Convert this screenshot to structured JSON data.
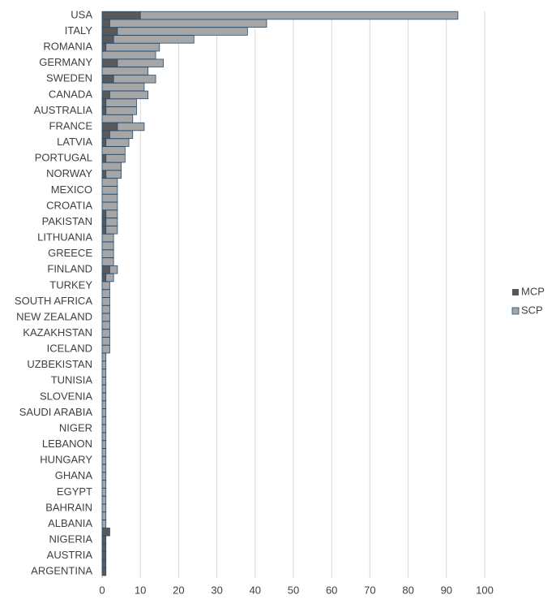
{
  "chart_data": {
    "type": "stacked-barh",
    "categories": [
      "USA",
      null,
      "ITALY",
      null,
      "ROMANIA",
      null,
      "GERMANY",
      null,
      "SWEDEN",
      null,
      "CANADA",
      null,
      "AUSTRALIA",
      null,
      "FRANCE",
      null,
      "LATVIA",
      null,
      "PORTUGAL",
      null,
      "NORWAY",
      null,
      "MEXICO",
      null,
      "CROATIA",
      null,
      "PAKISTAN",
      null,
      "LITHUANIA",
      null,
      "GREECE",
      null,
      "FINLAND",
      null,
      "TURKEY",
      null,
      "SOUTH AFRICA",
      null,
      "NEW ZEALAND",
      null,
      "KAZAKHSTAN",
      null,
      "ICELAND",
      null,
      "UZBEKISTAN",
      null,
      "TUNISIA",
      null,
      "SLOVENIA",
      null,
      "SAUDI ARABIA",
      null,
      "NIGER",
      null,
      "LEBANON",
      null,
      "HUNGARY",
      null,
      "GHANA",
      null,
      "EGYPT",
      null,
      "BAHRAIN",
      null,
      "ALBANIA",
      null,
      "NIGERIA",
      null,
      "AUSTRIA",
      null,
      "ARGENTINA"
    ],
    "series": [
      {
        "name": "MCP",
        "color": "#595959",
        "values": [
          10,
          2,
          4,
          3,
          1,
          0,
          4,
          0,
          3,
          0,
          2,
          1,
          1,
          0,
          4,
          2,
          1,
          0,
          1,
          0,
          1,
          0,
          0,
          0,
          0,
          1,
          1,
          1,
          0,
          0,
          0,
          0,
          2,
          1,
          0,
          0,
          0,
          0,
          0,
          0,
          0,
          0,
          0,
          0,
          0,
          0,
          0,
          0,
          0,
          0,
          0,
          0,
          0,
          0,
          0,
          0,
          0,
          0,
          0,
          0,
          0,
          0,
          0,
          0,
          0,
          2,
          1,
          1,
          1,
          1,
          1
        ]
      },
      {
        "name": "SCP",
        "color": "#a6a6a6",
        "values": [
          83,
          41,
          34,
          21,
          14,
          14,
          12,
          12,
          11,
          11,
          10,
          8,
          8,
          8,
          7,
          6,
          6,
          6,
          5,
          5,
          4,
          4,
          4,
          4,
          4,
          3,
          3,
          3,
          3,
          3,
          3,
          3,
          2,
          2,
          2,
          2,
          2,
          2,
          2,
          2,
          2,
          2,
          2,
          1,
          1,
          1,
          1,
          1,
          1,
          1,
          1,
          1,
          1,
          1,
          1,
          1,
          1,
          1,
          1,
          1,
          1,
          1,
          1,
          1,
          1,
          0,
          0,
          0,
          0,
          0,
          0
        ]
      }
    ],
    "xlim": [
      0,
      100
    ],
    "xticks": [
      0,
      10,
      20,
      30,
      40,
      50,
      60,
      70,
      80,
      90,
      100
    ],
    "grid": true,
    "legend": "right"
  }
}
